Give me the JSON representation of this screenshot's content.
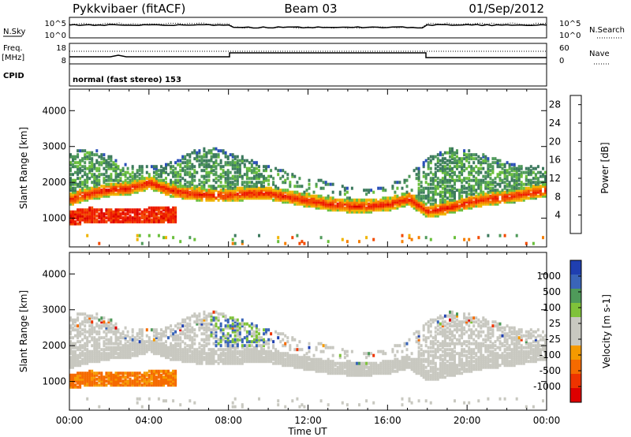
{
  "header": {
    "radar": "Pykkvibaer (fitACF)",
    "beam": "Beam 03",
    "date": "01/Sep/2012"
  },
  "sky_panel": {
    "left_label": "N.Sky",
    "left_ticks": [
      "10^5",
      "10^0"
    ],
    "right_ticks": [
      "10^5",
      "10^0"
    ],
    "right_label": "N.Search"
  },
  "freq_panel": {
    "left_label_1": "Freq.",
    "left_label_2": "[MHz]",
    "left_ticks": [
      "18",
      "8"
    ],
    "right_ticks": [
      "60",
      "0"
    ],
    "right_label": "Nave"
  },
  "cpid_panel": {
    "label": "CPID",
    "text": "normal (fast stereo) 153"
  },
  "colors": {
    "power_scale": [
      "#1a1adc",
      "#2a4fb8",
      "#3d7a5e",
      "#4f9a5a",
      "#6abf3c",
      "#f0b400",
      "#f57e00",
      "#f24a00",
      "#ee1c00",
      "#dd0000"
    ],
    "velocity_scale": [
      "#dd0000",
      "#ee3300",
      "#f56a00",
      "#f59a00",
      "#c8c8c0",
      "#c8c8c0",
      "#7fc23a",
      "#4f9a5a",
      "#3a65b8",
      "#1f3fb0"
    ],
    "ground_scatter": "#c8c8c0"
  },
  "chart_data": [
    {
      "type": "heatmap",
      "title": "",
      "xlabel": "",
      "ylabel": "Slant Range [km]",
      "x_tick_labels": [
        "00:00",
        "04:00",
        "08:00",
        "12:00",
        "16:00",
        "20:00",
        "00:00"
      ],
      "y_tick_labels": [
        "1000",
        "2000",
        "3000",
        "4000"
      ],
      "xlim": [
        0,
        24
      ],
      "ylim": [
        200,
        4600
      ],
      "colorbar": {
        "label": "Power [dB]",
        "ticks": [
          "4",
          "8",
          "12",
          "16",
          "20",
          "24",
          "28"
        ],
        "range": [
          0,
          30
        ]
      },
      "bands": [
        {
          "name": "upper",
          "x": [
            0,
            1,
            2,
            3,
            4,
            5,
            6,
            7,
            8,
            9,
            10,
            11,
            12,
            13,
            14,
            15,
            16,
            17,
            18,
            19,
            20,
            21,
            22,
            23,
            24
          ],
          "y": [
            2550,
            2650,
            2500,
            2150,
            2150,
            2250,
            2550,
            2700,
            2550,
            2350,
            2150,
            2000,
            1850,
            1700,
            1550,
            1500,
            1650,
            1900,
            2400,
            2650,
            2650,
            2450,
            2250,
            2150,
            2150
          ]
        },
        {
          "name": "main",
          "x": [
            0,
            1,
            2,
            3,
            4,
            5,
            6,
            7,
            8,
            9,
            10,
            11,
            12,
            13,
            14,
            15,
            16,
            17,
            18,
            19,
            20,
            21,
            22,
            23,
            24
          ],
          "y": [
            1500,
            1650,
            1750,
            1800,
            1950,
            1750,
            1650,
            1600,
            1600,
            1650,
            1650,
            1550,
            1450,
            1350,
            1300,
            1300,
            1350,
            1500,
            1150,
            1250,
            1400,
            1500,
            1550,
            1650,
            1750
          ]
        },
        {
          "name": "near",
          "x": [
            0,
            1,
            2,
            3,
            4,
            5
          ],
          "y": [
            950,
            1050,
            1000,
            1000,
            1050,
            1050
          ]
        }
      ]
    },
    {
      "type": "heatmap",
      "title": "",
      "xlabel": "Time UT",
      "ylabel": "Slant Range [km]",
      "x_tick_labels": [
        "00:00",
        "04:00",
        "08:00",
        "12:00",
        "16:00",
        "20:00",
        "00:00"
      ],
      "y_tick_labels": [
        "1000",
        "2000",
        "3000",
        "4000"
      ],
      "xlim": [
        0,
        24
      ],
      "ylim": [
        200,
        4600
      ],
      "colorbar": {
        "label": "Velocity [m s-1]",
        "ticks": [
          "1000",
          "500",
          "100",
          "25",
          "-25",
          "-100",
          "-500",
          "-1000"
        ]
      }
    }
  ]
}
